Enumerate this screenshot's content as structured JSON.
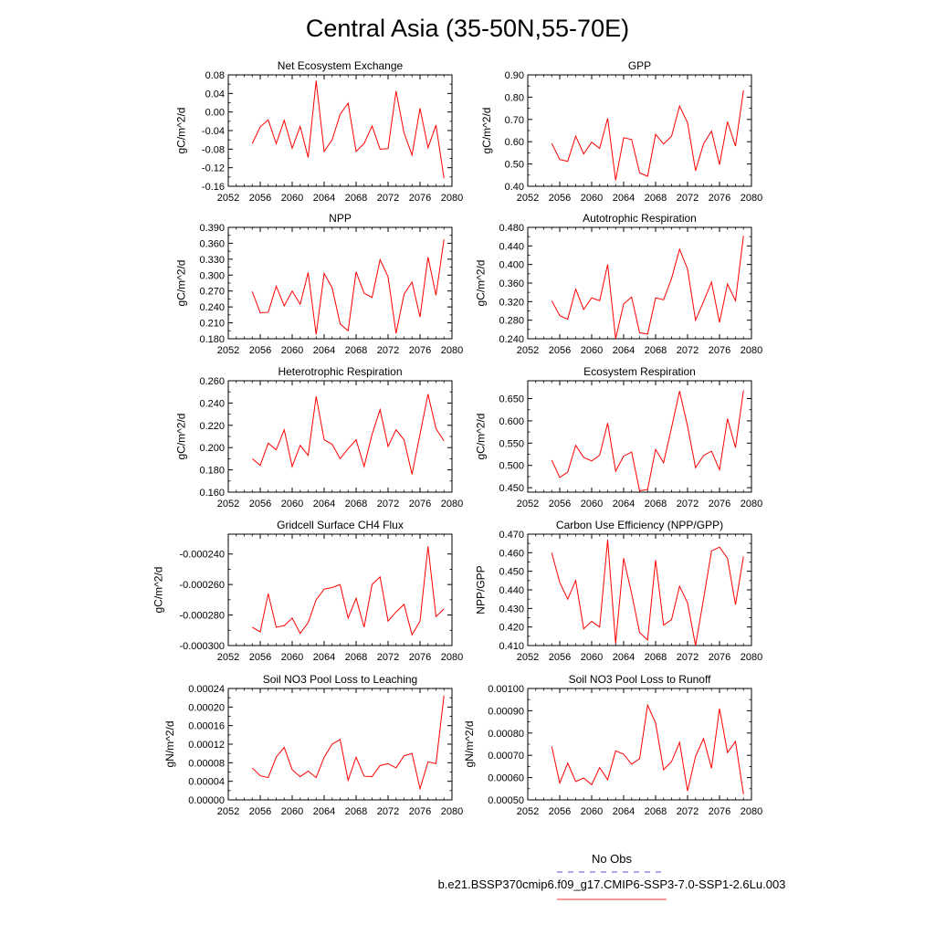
{
  "title": "Central Asia (35-50N,55-70E)",
  "legend": {
    "entries": [
      {
        "label": "No Obs",
        "color": "#5555cc",
        "dash": true
      },
      {
        "label": "b.e21.BSSP370cmip6.f09_g17.CMIP6-SSP3-7.0-SSP1-2.6Lu.003",
        "color": "#ee3333",
        "dash": false
      }
    ]
  },
  "chart_data": [
    {
      "type": "line",
      "title": "Net Ecosystem Exchange",
      "ylabel": "gC/m^2/d",
      "xlim": [
        2052,
        2080
      ],
      "ylim": [
        -0.16,
        0.08
      ],
      "xticks": [
        "2052",
        "2056",
        "2060",
        "2064",
        "2068",
        "2072",
        "2076",
        "2080"
      ],
      "yticks": [
        "-0.16",
        "-0.12",
        "-0.08",
        "-0.04",
        "0.00",
        "0.04",
        "0.08"
      ],
      "series": [
        {
          "color": "#ff0000",
          "x": [
            2055,
            2056,
            2057,
            2058,
            2059,
            2060,
            2061,
            2062,
            2063,
            2064,
            2065,
            2066,
            2067,
            2068,
            2069,
            2070,
            2071,
            2072,
            2073,
            2074,
            2075,
            2076,
            2077,
            2078,
            2079
          ],
          "values": [
            -0.068,
            -0.032,
            -0.017,
            -0.068,
            -0.018,
            -0.078,
            -0.031,
            -0.098,
            0.067,
            -0.085,
            -0.06,
            -0.005,
            0.019,
            -0.085,
            -0.068,
            -0.03,
            -0.08,
            -0.079,
            0.045,
            -0.045,
            -0.093,
            0.008,
            -0.077,
            -0.028,
            -0.143
          ]
        }
      ]
    },
    {
      "type": "line",
      "title": "GPP",
      "ylabel": "gC/m^2/d",
      "xlim": [
        2052,
        2080
      ],
      "ylim": [
        0.4,
        0.9
      ],
      "xticks": [
        "2052",
        "2056",
        "2060",
        "2064",
        "2068",
        "2072",
        "2076",
        "2080"
      ],
      "yticks": [
        "0.40",
        "0.50",
        "0.60",
        "0.70",
        "0.80",
        "0.90"
      ],
      "series": [
        {
          "color": "#ff0000",
          "x": [
            2055,
            2056,
            2057,
            2058,
            2059,
            2060,
            2061,
            2062,
            2063,
            2064,
            2065,
            2066,
            2067,
            2068,
            2069,
            2070,
            2071,
            2072,
            2073,
            2074,
            2075,
            2076,
            2077,
            2078,
            2079
          ],
          "values": [
            0.593,
            0.52,
            0.512,
            0.625,
            0.545,
            0.598,
            0.57,
            0.705,
            0.427,
            0.618,
            0.61,
            0.46,
            0.445,
            0.633,
            0.59,
            0.625,
            0.76,
            0.685,
            0.47,
            0.59,
            0.648,
            0.497,
            0.69,
            0.58,
            0.83
          ]
        }
      ]
    },
    {
      "type": "line",
      "title": "NPP",
      "ylabel": "gC/m^2/d",
      "xlim": [
        2052,
        2080
      ],
      "ylim": [
        0.18,
        0.39
      ],
      "xticks": [
        "2052",
        "2056",
        "2060",
        "2064",
        "2068",
        "2072",
        "2076",
        "2080"
      ],
      "yticks": [
        "0.180",
        "0.210",
        "0.240",
        "0.270",
        "0.300",
        "0.330",
        "0.360",
        "0.390"
      ],
      "series": [
        {
          "color": "#ff0000",
          "x": [
            2055,
            2056,
            2057,
            2058,
            2059,
            2060,
            2061,
            2062,
            2063,
            2064,
            2065,
            2066,
            2067,
            2068,
            2069,
            2070,
            2071,
            2072,
            2073,
            2074,
            2075,
            2076,
            2077,
            2078,
            2079
          ],
          "values": [
            0.269,
            0.229,
            0.23,
            0.279,
            0.242,
            0.27,
            0.245,
            0.305,
            0.188,
            0.303,
            0.276,
            0.208,
            0.195,
            0.306,
            0.266,
            0.258,
            0.329,
            0.297,
            0.19,
            0.264,
            0.287,
            0.221,
            0.334,
            0.262,
            0.367
          ]
        }
      ]
    },
    {
      "type": "line",
      "title": "Autotrophic Respiration",
      "ylabel": "gC/m^2/d",
      "xlim": [
        2052,
        2080
      ],
      "ylim": [
        0.24,
        0.48
      ],
      "xticks": [
        "2052",
        "2056",
        "2060",
        "2064",
        "2068",
        "2072",
        "2076",
        "2080"
      ],
      "yticks": [
        "0.240",
        "0.280",
        "0.320",
        "0.360",
        "0.400",
        "0.440",
        "0.480"
      ],
      "series": [
        {
          "color": "#ff0000",
          "x": [
            2055,
            2056,
            2057,
            2058,
            2059,
            2060,
            2061,
            2062,
            2063,
            2064,
            2065,
            2066,
            2067,
            2068,
            2069,
            2070,
            2071,
            2072,
            2073,
            2074,
            2075,
            2076,
            2077,
            2078,
            2079
          ],
          "values": [
            0.322,
            0.29,
            0.282,
            0.347,
            0.303,
            0.328,
            0.322,
            0.4,
            0.24,
            0.315,
            0.33,
            0.253,
            0.25,
            0.328,
            0.324,
            0.37,
            0.433,
            0.39,
            0.28,
            0.32,
            0.362,
            0.275,
            0.358,
            0.322,
            0.462
          ]
        }
      ]
    },
    {
      "type": "line",
      "title": "Heterotrophic Respiration",
      "ylabel": "gC/m^2/d",
      "xlim": [
        2052,
        2080
      ],
      "ylim": [
        0.16,
        0.26
      ],
      "xticks": [
        "2052",
        "2056",
        "2060",
        "2064",
        "2068",
        "2072",
        "2076",
        "2080"
      ],
      "yticks": [
        "0.160",
        "0.180",
        "0.200",
        "0.220",
        "0.240",
        "0.260"
      ],
      "series": [
        {
          "color": "#ff0000",
          "x": [
            2055,
            2056,
            2057,
            2058,
            2059,
            2060,
            2061,
            2062,
            2063,
            2064,
            2065,
            2066,
            2067,
            2068,
            2069,
            2070,
            2071,
            2072,
            2073,
            2074,
            2075,
            2076,
            2077,
            2078,
            2079
          ],
          "values": [
            0.19,
            0.184,
            0.204,
            0.198,
            0.216,
            0.183,
            0.202,
            0.193,
            0.246,
            0.207,
            0.203,
            0.19,
            0.199,
            0.207,
            0.183,
            0.212,
            0.234,
            0.201,
            0.216,
            0.207,
            0.176,
            0.212,
            0.248,
            0.217,
            0.206
          ]
        }
      ]
    },
    {
      "type": "line",
      "title": "Ecosystem Respiration",
      "ylabel": "gC/m^2/d",
      "xlim": [
        2052,
        2080
      ],
      "ylim": [
        0.44,
        0.69
      ],
      "xticks": [
        "2052",
        "2056",
        "2060",
        "2064",
        "2068",
        "2072",
        "2076",
        "2080"
      ],
      "yticks": [
        "0.450",
        "0.500",
        "0.550",
        "0.600",
        "0.650"
      ],
      "ytick_values": [
        0.45,
        0.5,
        0.55,
        0.6,
        0.65
      ],
      "series": [
        {
          "color": "#ff0000",
          "x": [
            2055,
            2056,
            2057,
            2058,
            2059,
            2060,
            2061,
            2062,
            2063,
            2064,
            2065,
            2066,
            2067,
            2068,
            2069,
            2070,
            2071,
            2072,
            2073,
            2074,
            2075,
            2076,
            2077,
            2078,
            2079
          ],
          "values": [
            0.512,
            0.473,
            0.485,
            0.545,
            0.518,
            0.51,
            0.523,
            0.595,
            0.487,
            0.521,
            0.53,
            0.443,
            0.446,
            0.536,
            0.506,
            0.585,
            0.667,
            0.588,
            0.495,
            0.522,
            0.532,
            0.49,
            0.605,
            0.54,
            0.668
          ]
        }
      ]
    },
    {
      "type": "line",
      "title": "Gridcell Surface CH4 Flux",
      "ylabel": "gC/m^2/d",
      "xlim": [
        2052,
        2080
      ],
      "ylim": [
        -0.0003,
        -0.000227
      ],
      "xticks": [
        "2052",
        "2056",
        "2060",
        "2064",
        "2068",
        "2072",
        "2076",
        "2080"
      ],
      "yticks": [
        "-0.000300",
        "-0.000280",
        "-0.000260",
        "-0.000240"
      ],
      "ytick_values": [
        -0.0003,
        -0.00028,
        -0.00026,
        -0.00024
      ],
      "series": [
        {
          "color": "#ff0000",
          "x": [
            2055,
            2056,
            2057,
            2058,
            2059,
            2060,
            2061,
            2062,
            2063,
            2064,
            2065,
            2066,
            2067,
            2068,
            2069,
            2070,
            2071,
            2072,
            2073,
            2074,
            2075,
            2076,
            2077,
            2078,
            2079
          ],
          "values": [
            -0.000288,
            -0.000291,
            -0.000266,
            -0.000288,
            -0.000287,
            -0.000282,
            -0.000292,
            -0.000285,
            -0.00027,
            -0.000263,
            -0.000262,
            -0.00026,
            -0.000282,
            -0.000269,
            -0.000288,
            -0.00026,
            -0.000255,
            -0.000284,
            -0.000278,
            -0.000273,
            -0.000293,
            -0.000284,
            -0.000235,
            -0.000281,
            -0.000276
          ]
        }
      ]
    },
    {
      "type": "line",
      "title": "Carbon Use Efficiency (NPP/GPP)",
      "ylabel": "NPP/GPP",
      "xlim": [
        2052,
        2080
      ],
      "ylim": [
        0.41,
        0.47
      ],
      "xticks": [
        "2052",
        "2056",
        "2060",
        "2064",
        "2068",
        "2072",
        "2076",
        "2080"
      ],
      "yticks": [
        "0.410",
        "0.420",
        "0.430",
        "0.440",
        "0.450",
        "0.460",
        "0.470"
      ],
      "series": [
        {
          "color": "#ff0000",
          "x": [
            2055,
            2056,
            2057,
            2058,
            2059,
            2060,
            2061,
            2062,
            2063,
            2064,
            2065,
            2066,
            2067,
            2068,
            2069,
            2070,
            2071,
            2072,
            2073,
            2074,
            2075,
            2076,
            2077,
            2078,
            2079
          ],
          "values": [
            0.46,
            0.444,
            0.435,
            0.445,
            0.419,
            0.423,
            0.42,
            0.467,
            0.411,
            0.457,
            0.438,
            0.417,
            0.413,
            0.456,
            0.421,
            0.424,
            0.442,
            0.433,
            0.41,
            0.435,
            0.461,
            0.463,
            0.457,
            0.432,
            0.458
          ]
        }
      ]
    },
    {
      "type": "line",
      "title": "Soil NO3 Pool Loss to Leaching",
      "ylabel": "gN/m^2/d",
      "xlim": [
        2052,
        2080
      ],
      "ylim": [
        0.0,
        0.00024
      ],
      "xticks": [
        "2052",
        "2056",
        "2060",
        "2064",
        "2068",
        "2072",
        "2076",
        "2080"
      ],
      "yticks": [
        "0.00000",
        "0.00004",
        "0.00008",
        "0.00012",
        "0.00016",
        "0.00020",
        "0.00024"
      ],
      "series": [
        {
          "color": "#ff0000",
          "x": [
            2055,
            2056,
            2057,
            2058,
            2059,
            2060,
            2061,
            2062,
            2063,
            2064,
            2065,
            2066,
            2067,
            2068,
            2069,
            2070,
            2071,
            2072,
            2073,
            2074,
            2075,
            2076,
            2077,
            2078,
            2079
          ],
          "values": [
            6.9e-05,
            5.2e-05,
            4.8e-05,
            9.2e-05,
            0.000113,
            6.5e-05,
            5e-05,
            6.2e-05,
            4.8e-05,
            9.2e-05,
            0.00012,
            0.00013,
            4.2e-05,
            9.2e-05,
            5.1e-05,
            5e-05,
            7.4e-05,
            7.8e-05,
            6.9e-05,
            9.5e-05,
            0.0001,
            2.4e-05,
            8.2e-05,
            7.8e-05,
            0.000225
          ]
        }
      ]
    },
    {
      "type": "line",
      "title": "Soil NO3 Pool Loss to Runoff",
      "ylabel": "gN/m^2/d",
      "xlim": [
        2052,
        2080
      ],
      "ylim": [
        0.0005,
        0.001
      ],
      "xticks": [
        "2052",
        "2056",
        "2060",
        "2064",
        "2068",
        "2072",
        "2076",
        "2080"
      ],
      "yticks": [
        "0.00050",
        "0.00060",
        "0.00070",
        "0.00080",
        "0.00090",
        "0.00100"
      ],
      "series": [
        {
          "color": "#ff0000",
          "x": [
            2055,
            2056,
            2057,
            2058,
            2059,
            2060,
            2061,
            2062,
            2063,
            2064,
            2065,
            2066,
            2067,
            2068,
            2069,
            2070,
            2071,
            2072,
            2073,
            2074,
            2075,
            2076,
            2077,
            2078,
            2079
          ],
          "values": [
            0.00074,
            0.000575,
            0.000665,
            0.000582,
            0.000598,
            0.000568,
            0.000645,
            0.00059,
            0.00072,
            0.000705,
            0.00066,
            0.000685,
            0.000925,
            0.000845,
            0.000635,
            0.000672,
            0.000758,
            0.00054,
            0.000695,
            0.000775,
            0.000642,
            0.00091,
            0.000712,
            0.000762,
            0.000525
          ]
        }
      ]
    }
  ]
}
